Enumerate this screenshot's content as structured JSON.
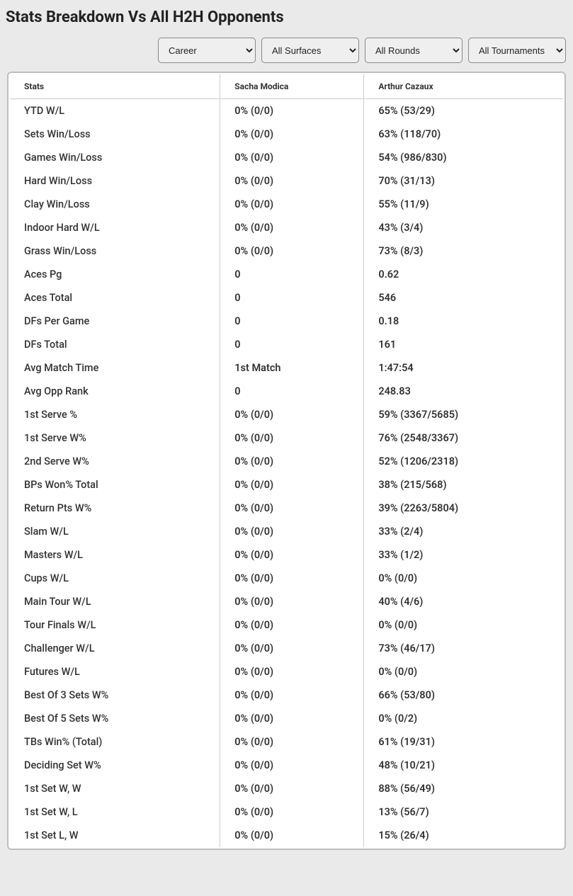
{
  "title": "Stats Breakdown Vs All H2H Opponents",
  "filters": {
    "period": "Career",
    "surface": "All Surfaces",
    "round": "All Rounds",
    "tournament": "All Tournaments"
  },
  "table": {
    "columns": [
      "Stats",
      "Sacha Modica",
      "Arthur Cazaux"
    ],
    "rows": [
      [
        "YTD W/L",
        "0% (0/0)",
        "65% (53/29)"
      ],
      [
        "Sets Win/Loss",
        "0% (0/0)",
        "63% (118/70)"
      ],
      [
        "Games Win/Loss",
        "0% (0/0)",
        "54% (986/830)"
      ],
      [
        "Hard Win/Loss",
        "0% (0/0)",
        "70% (31/13)"
      ],
      [
        "Clay Win/Loss",
        "0% (0/0)",
        "55% (11/9)"
      ],
      [
        "Indoor Hard W/L",
        "0% (0/0)",
        "43% (3/4)"
      ],
      [
        "Grass Win/Loss",
        "0% (0/0)",
        "73% (8/3)"
      ],
      [
        "Aces Pg",
        "0",
        "0.62"
      ],
      [
        "Aces Total",
        "0",
        "546"
      ],
      [
        "DFs Per Game",
        "0",
        "0.18"
      ],
      [
        "DFs Total",
        "0",
        "161"
      ],
      [
        "Avg Match Time",
        "1st Match",
        "1:47:54"
      ],
      [
        "Avg Opp Rank",
        "0",
        "248.83"
      ],
      [
        "1st Serve %",
        "0% (0/0)",
        "59% (3367/5685)"
      ],
      [
        "1st Serve W%",
        "0% (0/0)",
        "76% (2548/3367)"
      ],
      [
        "2nd Serve W%",
        "0% (0/0)",
        "52% (1206/2318)"
      ],
      [
        "BPs Won% Total",
        "0% (0/0)",
        "38% (215/568)"
      ],
      [
        "Return Pts W%",
        "0% (0/0)",
        "39% (2263/5804)"
      ],
      [
        "Slam W/L",
        "0% (0/0)",
        "33% (2/4)"
      ],
      [
        "Masters W/L",
        "0% (0/0)",
        "33% (1/2)"
      ],
      [
        "Cups W/L",
        "0% (0/0)",
        "0% (0/0)"
      ],
      [
        "Main Tour W/L",
        "0% (0/0)",
        "40% (4/6)"
      ],
      [
        "Tour Finals W/L",
        "0% (0/0)",
        "0% (0/0)"
      ],
      [
        "Challenger W/L",
        "0% (0/0)",
        "73% (46/17)"
      ],
      [
        "Futures W/L",
        "0% (0/0)",
        "0% (0/0)"
      ],
      [
        "Best Of 3 Sets W%",
        "0% (0/0)",
        "66% (53/80)"
      ],
      [
        "Best Of 5 Sets W%",
        "0% (0/0)",
        "0% (0/2)"
      ],
      [
        "TBs Win% (Total)",
        "0% (0/0)",
        "61% (19/31)"
      ],
      [
        "Deciding Set W%",
        "0% (0/0)",
        "48% (10/21)"
      ],
      [
        "1st Set W, W",
        "0% (0/0)",
        "88% (56/49)"
      ],
      [
        "1st Set W, L",
        "0% (0/0)",
        "13% (56/7)"
      ],
      [
        "1st Set L, W",
        "0% (0/0)",
        "15% (26/4)"
      ]
    ]
  }
}
